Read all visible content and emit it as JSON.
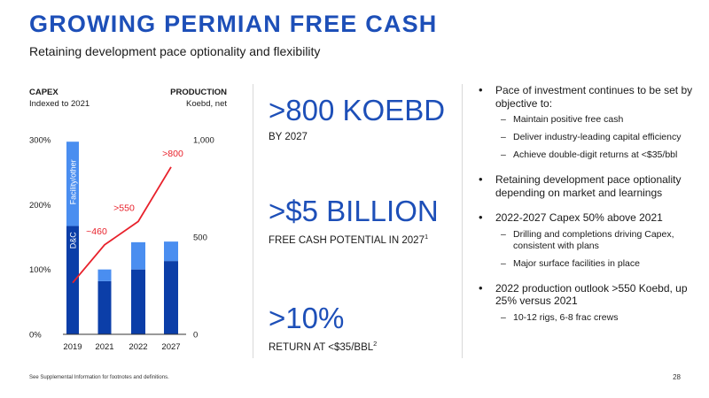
{
  "header": {
    "title": "GROWING PERMIAN FREE CASH",
    "subtitle": "Retaining development pace optionality and flexibility"
  },
  "chart_data": {
    "type": "bar",
    "left_axis_title": "CAPEX",
    "left_axis_subtitle": "Indexed to 2021",
    "right_axis_title": "PRODUCTION",
    "right_axis_subtitle": "Koebd, net",
    "categories": [
      "2019",
      "2021",
      "2022",
      "2027"
    ],
    "ylim": [
      0,
      300
    ],
    "y_ticks": [
      "0%",
      "100%",
      "200%",
      "300%"
    ],
    "y2lim": [
      0,
      1000
    ],
    "y2_ticks": [
      "0",
      "500",
      "1,000"
    ],
    "series": [
      {
        "name": "D&C",
        "type": "bar",
        "color": "#0b3ea8",
        "values": [
          167,
          82,
          100,
          113
        ]
      },
      {
        "name": "Facility/other",
        "type": "bar",
        "color": "#4a8ef0",
        "values": [
          130,
          18,
          42,
          30
        ]
      },
      {
        "type": "line",
        "axis": "right",
        "color": "#e8212b",
        "values": [
          265,
          460,
          580,
          860
        ]
      }
    ],
    "data_labels": [
      "~460",
      ">550",
      ">800"
    ],
    "colors": {
      "axis": "#333333",
      "grid": "#bfbfbf",
      "text": "#1a1a1a",
      "bar_label": "#ffffff"
    }
  },
  "metrics": [
    {
      "value": ">800 KOEBD",
      "label": "BY 2027",
      "sup": ""
    },
    {
      "value": ">$5 BILLION",
      "label": "FREE CASH POTENTIAL IN 2027",
      "sup": "1"
    },
    {
      "value": ">10%",
      "label": "RETURN AT <$35/BBL",
      "sup": "2"
    }
  ],
  "bullets": [
    {
      "text": "Pace of investment continues to be set by objective to:",
      "subs": [
        "Maintain positive free cash",
        "Deliver industry-leading capital efficiency",
        "Achieve double-digit returns at <$35/bbl"
      ]
    },
    {
      "text": "Retaining development pace optionality depending on market and learnings",
      "subs": []
    },
    {
      "text": "2022-2027 Capex 50% above 2021",
      "subs": [
        "Drilling and completions driving Capex, consistent with plans",
        "Major surface facilities in place"
      ]
    },
    {
      "text": "2022 production outlook >550 Koebd, up 25% versus 2021",
      "subs": [
        "10-12 rigs, 6-8 frac crews"
      ]
    }
  ],
  "footnote": "See Supplemental Information for footnotes and definitions.",
  "page_number": "28"
}
